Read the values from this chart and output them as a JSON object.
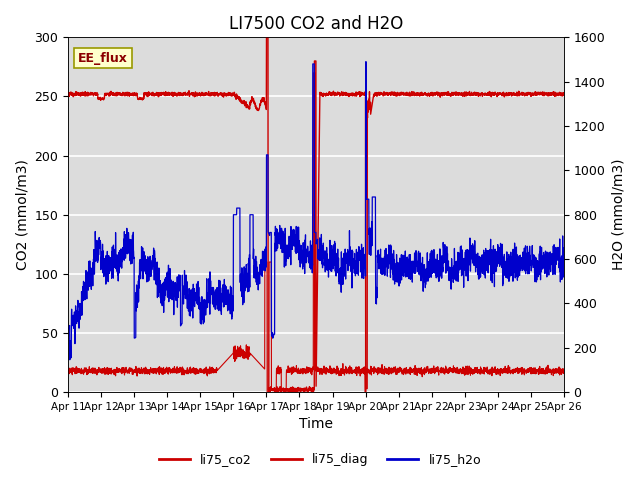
{
  "title": "LI7500 CO2 and H2O",
  "ylabel_left": "CO2 (mmol/m3)",
  "ylabel_right": "H2O (mmol/m3)",
  "xlabel": "Time",
  "ylim_left": [
    0,
    300
  ],
  "ylim_right": [
    0,
    1600
  ],
  "background_color": "#dcdcdc",
  "annotation_text": "EE_flux",
  "annotation_bg": "#ffffcc",
  "annotation_border": "#999900",
  "x_tick_labels": [
    "Apr 11",
    "Apr 12",
    "Apr 13",
    "Apr 14",
    "Apr 15",
    "Apr 16",
    "Apr 17",
    "Apr 18",
    "Apr 19",
    "Apr 20",
    "Apr 21",
    "Apr 22",
    "Apr 23",
    "Apr 24",
    "Apr 25",
    "Apr 26"
  ],
  "legend_labels": [
    "li75_co2",
    "li75_diag",
    "li75_h2o"
  ],
  "co2_color": "#cc0000",
  "diag_color": "#cc0000",
  "h2o_color": "#0000cc",
  "title_fontsize": 12,
  "axis_fontsize": 10,
  "tick_fontsize": 9
}
